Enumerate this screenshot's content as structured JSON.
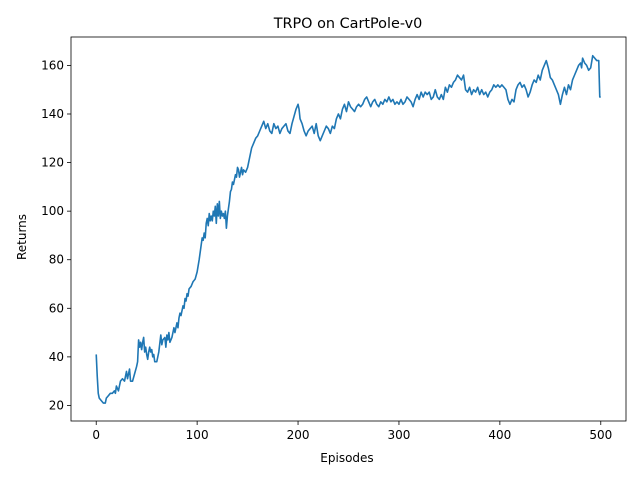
{
  "chart_data": {
    "type": "line",
    "title": "TRPO on CartPole-v0",
    "xlabel": "Episodes",
    "ylabel": "Returns",
    "xlim": [
      -25,
      525
    ],
    "ylim": [
      13.6,
      171.7
    ],
    "xticks": [
      0,
      100,
      200,
      300,
      400,
      500
    ],
    "yticks": [
      20,
      40,
      60,
      80,
      100,
      120,
      140,
      160
    ],
    "grid": false,
    "legend": "none",
    "series": [
      {
        "color": "#1f77b4",
        "points": [
          [
            0,
            41
          ],
          [
            1,
            32
          ],
          [
            2,
            25
          ],
          [
            3,
            23
          ],
          [
            5,
            22
          ],
          [
            7,
            21
          ],
          [
            9,
            21
          ],
          [
            10,
            23
          ],
          [
            12,
            24
          ],
          [
            14,
            25
          ],
          [
            16,
            25
          ],
          [
            18,
            26
          ],
          [
            19,
            25
          ],
          [
            20,
            28
          ],
          [
            22,
            26
          ],
          [
            24,
            30
          ],
          [
            26,
            31
          ],
          [
            28,
            30
          ],
          [
            30,
            34
          ],
          [
            31,
            31
          ],
          [
            33,
            35
          ],
          [
            34,
            30
          ],
          [
            36,
            30
          ],
          [
            38,
            33
          ],
          [
            40,
            36
          ],
          [
            41,
            38
          ],
          [
            42,
            47
          ],
          [
            43,
            44
          ],
          [
            44,
            46
          ],
          [
            45,
            43
          ],
          [
            46,
            46
          ],
          [
            47,
            48
          ],
          [
            48,
            42
          ],
          [
            49,
            44
          ],
          [
            50,
            41
          ],
          [
            51,
            39
          ],
          [
            52,
            42
          ],
          [
            53,
            44
          ],
          [
            54,
            42
          ],
          [
            55,
            43
          ],
          [
            56,
            40
          ],
          [
            57,
            41
          ],
          [
            58,
            38
          ],
          [
            60,
            38
          ],
          [
            62,
            42
          ],
          [
            64,
            49
          ],
          [
            65,
            45
          ],
          [
            66,
            47
          ],
          [
            68,
            48
          ],
          [
            69,
            44
          ],
          [
            70,
            49
          ],
          [
            71,
            47
          ],
          [
            72,
            50
          ],
          [
            73,
            46
          ],
          [
            75,
            48
          ],
          [
            77,
            52
          ],
          [
            78,
            50
          ],
          [
            80,
            54
          ],
          [
            81,
            52
          ],
          [
            82,
            56
          ],
          [
            83,
            58
          ],
          [
            84,
            57
          ],
          [
            86,
            61
          ],
          [
            87,
            60
          ],
          [
            88,
            64
          ],
          [
            89,
            63
          ],
          [
            90,
            66
          ],
          [
            91,
            65
          ],
          [
            92,
            68
          ],
          [
            94,
            69
          ],
          [
            96,
            71
          ],
          [
            98,
            72
          ],
          [
            100,
            75
          ],
          [
            102,
            80
          ],
          [
            104,
            86
          ],
          [
            105,
            89
          ],
          [
            106,
            88
          ],
          [
            107,
            91
          ],
          [
            108,
            89
          ],
          [
            109,
            95
          ],
          [
            110,
            97
          ],
          [
            111,
            94
          ],
          [
            112,
            99
          ],
          [
            113,
            96
          ],
          [
            114,
            98
          ],
          [
            115,
            96
          ],
          [
            116,
            100
          ],
          [
            117,
            98
          ],
          [
            118,
            102
          ],
          [
            119,
            95
          ],
          [
            120,
            103
          ],
          [
            121,
            98
          ],
          [
            122,
            104
          ],
          [
            123,
            97
          ],
          [
            124,
            100
          ],
          [
            125,
            98
          ],
          [
            126,
            99
          ],
          [
            127,
            97
          ],
          [
            128,
            100
          ],
          [
            129,
            93
          ],
          [
            130,
            98
          ],
          [
            131,
            101
          ],
          [
            132,
            104
          ],
          [
            133,
            108
          ],
          [
            134,
            109
          ],
          [
            135,
            112
          ],
          [
            136,
            111
          ],
          [
            137,
            113
          ],
          [
            138,
            115
          ],
          [
            139,
            114
          ],
          [
            140,
            118
          ],
          [
            141,
            117
          ],
          [
            142,
            114
          ],
          [
            143,
            116
          ],
          [
            144,
            118
          ],
          [
            145,
            115
          ],
          [
            146,
            117
          ],
          [
            148,
            116
          ],
          [
            150,
            118
          ],
          [
            152,
            122
          ],
          [
            154,
            126
          ],
          [
            156,
            128
          ],
          [
            158,
            130
          ],
          [
            160,
            131
          ],
          [
            162,
            133
          ],
          [
            164,
            135
          ],
          [
            166,
            137
          ],
          [
            168,
            134
          ],
          [
            170,
            136
          ],
          [
            172,
            133
          ],
          [
            174,
            132
          ],
          [
            176,
            136
          ],
          [
            178,
            134
          ],
          [
            180,
            135
          ],
          [
            182,
            132
          ],
          [
            184,
            134
          ],
          [
            186,
            135
          ],
          [
            188,
            136
          ],
          [
            190,
            133
          ],
          [
            192,
            132
          ],
          [
            194,
            136
          ],
          [
            196,
            139
          ],
          [
            198,
            142
          ],
          [
            200,
            144
          ],
          [
            201,
            142
          ],
          [
            202,
            138
          ],
          [
            204,
            136
          ],
          [
            206,
            133
          ],
          [
            208,
            131
          ],
          [
            210,
            133
          ],
          [
            212,
            134
          ],
          [
            214,
            135
          ],
          [
            216,
            132
          ],
          [
            218,
            136
          ],
          [
            220,
            131
          ],
          [
            222,
            129
          ],
          [
            224,
            131
          ],
          [
            226,
            133
          ],
          [
            228,
            135
          ],
          [
            230,
            134
          ],
          [
            232,
            132
          ],
          [
            234,
            135
          ],
          [
            236,
            134
          ],
          [
            238,
            138
          ],
          [
            240,
            140
          ],
          [
            242,
            138
          ],
          [
            244,
            142
          ],
          [
            246,
            144
          ],
          [
            248,
            141
          ],
          [
            250,
            145
          ],
          [
            252,
            143
          ],
          [
            254,
            142
          ],
          [
            256,
            141
          ],
          [
            258,
            143
          ],
          [
            260,
            144
          ],
          [
            262,
            143
          ],
          [
            264,
            144
          ],
          [
            266,
            146
          ],
          [
            268,
            147
          ],
          [
            270,
            145
          ],
          [
            272,
            143
          ],
          [
            274,
            145
          ],
          [
            276,
            146
          ],
          [
            278,
            144
          ],
          [
            280,
            143
          ],
          [
            282,
            145
          ],
          [
            284,
            144
          ],
          [
            286,
            146
          ],
          [
            288,
            145
          ],
          [
            290,
            147
          ],
          [
            292,
            145
          ],
          [
            294,
            146
          ],
          [
            296,
            144
          ],
          [
            298,
            145
          ],
          [
            300,
            144
          ],
          [
            302,
            146
          ],
          [
            304,
            144
          ],
          [
            306,
            145
          ],
          [
            308,
            147
          ],
          [
            310,
            146
          ],
          [
            312,
            145
          ],
          [
            314,
            143
          ],
          [
            316,
            146
          ],
          [
            318,
            148
          ],
          [
            320,
            146
          ],
          [
            322,
            149
          ],
          [
            324,
            147
          ],
          [
            326,
            149
          ],
          [
            328,
            148
          ],
          [
            330,
            149
          ],
          [
            332,
            146
          ],
          [
            334,
            147
          ],
          [
            336,
            150
          ],
          [
            338,
            147
          ],
          [
            340,
            146
          ],
          [
            342,
            148
          ],
          [
            344,
            146
          ],
          [
            346,
            151
          ],
          [
            348,
            149
          ],
          [
            350,
            152
          ],
          [
            352,
            151
          ],
          [
            354,
            153
          ],
          [
            356,
            154
          ],
          [
            358,
            156
          ],
          [
            360,
            155
          ],
          [
            362,
            154
          ],
          [
            364,
            156
          ],
          [
            366,
            150
          ],
          [
            368,
            149
          ],
          [
            370,
            151
          ],
          [
            372,
            148
          ],
          [
            374,
            150
          ],
          [
            376,
            149
          ],
          [
            378,
            151
          ],
          [
            380,
            148
          ],
          [
            382,
            150
          ],
          [
            384,
            148
          ],
          [
            386,
            149
          ],
          [
            388,
            147
          ],
          [
            390,
            149
          ],
          [
            392,
            150
          ],
          [
            394,
            152
          ],
          [
            396,
            151
          ],
          [
            398,
            152
          ],
          [
            400,
            151
          ],
          [
            402,
            152
          ],
          [
            404,
            151
          ],
          [
            406,
            150
          ],
          [
            408,
            146
          ],
          [
            410,
            144
          ],
          [
            412,
            146
          ],
          [
            414,
            145
          ],
          [
            416,
            150
          ],
          [
            418,
            152
          ],
          [
            420,
            153
          ],
          [
            422,
            151
          ],
          [
            424,
            152
          ],
          [
            426,
            150
          ],
          [
            428,
            147
          ],
          [
            430,
            149
          ],
          [
            432,
            152
          ],
          [
            434,
            154
          ],
          [
            436,
            153
          ],
          [
            438,
            156
          ],
          [
            440,
            154
          ],
          [
            442,
            158
          ],
          [
            444,
            160
          ],
          [
            446,
            162
          ],
          [
            448,
            159
          ],
          [
            450,
            155
          ],
          [
            452,
            154
          ],
          [
            454,
            152
          ],
          [
            456,
            150
          ],
          [
            458,
            148
          ],
          [
            460,
            144
          ],
          [
            462,
            148
          ],
          [
            464,
            151
          ],
          [
            466,
            148
          ],
          [
            468,
            152
          ],
          [
            470,
            150
          ],
          [
            472,
            154
          ],
          [
            474,
            156
          ],
          [
            476,
            158
          ],
          [
            478,
            160
          ],
          [
            480,
            161
          ],
          [
            481,
            159
          ],
          [
            482,
            163
          ],
          [
            484,
            161
          ],
          [
            486,
            160
          ],
          [
            488,
            158
          ],
          [
            490,
            159
          ],
          [
            492,
            164
          ],
          [
            494,
            163
          ],
          [
            496,
            162
          ],
          [
            498,
            162
          ],
          [
            499,
            147
          ],
          [
            500,
            147
          ]
        ]
      }
    ]
  }
}
